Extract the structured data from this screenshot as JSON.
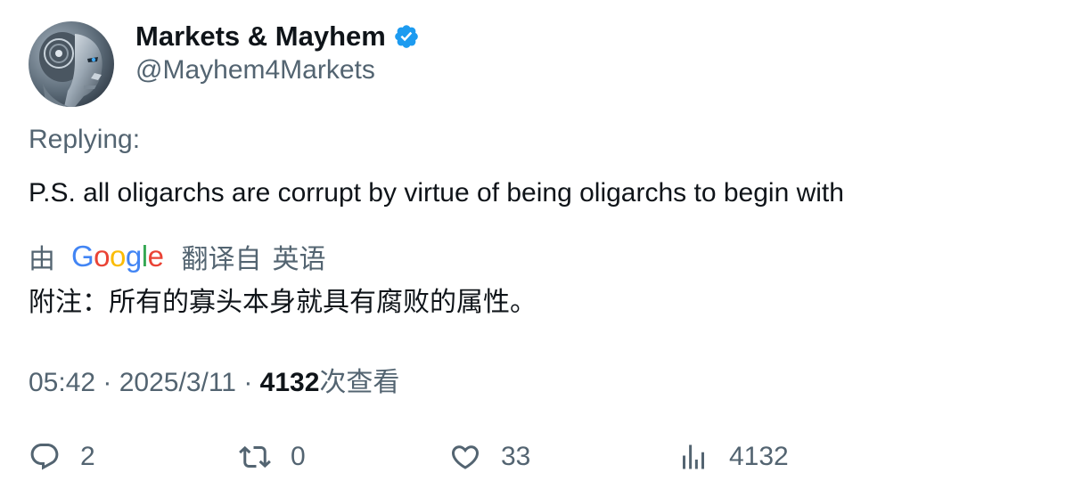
{
  "author": {
    "display_name": "Markets & Mayhem",
    "handle": "@Mayhem4Markets",
    "verified": true,
    "verified_color": "#1d9bf0"
  },
  "tweet": {
    "replying_label": "Replying:",
    "text": "P.S. all oligarchs are corrupt by virtue of being oligarchs to begin with"
  },
  "translation": {
    "prefix": "由",
    "provider": "Google",
    "suffix": "翻译自",
    "source_language": "英语",
    "text": "附注：所有的寡头本身就具有腐败的属性。"
  },
  "meta": {
    "time": "05:42",
    "separator": " · ",
    "date": "2025/3/11",
    "views": "4132",
    "views_label": "次查看"
  },
  "actions": {
    "replies": "2",
    "reposts": "0",
    "likes": "33",
    "views": "4132"
  },
  "colors": {
    "text_primary": "#0f1419",
    "text_secondary": "#536471"
  }
}
